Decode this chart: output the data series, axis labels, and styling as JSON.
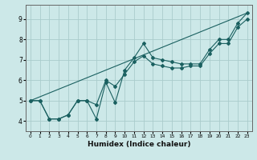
{
  "xlabel": "Humidex (Indice chaleur)",
  "bg_color": "#cce8e8",
  "grid_color": "#aacccc",
  "line_color": "#1a6060",
  "xlim": [
    -0.5,
    23.5
  ],
  "ylim": [
    3.5,
    9.7
  ],
  "xticks": [
    0,
    1,
    2,
    3,
    4,
    5,
    6,
    7,
    8,
    9,
    10,
    11,
    12,
    13,
    14,
    15,
    16,
    17,
    18,
    19,
    20,
    21,
    22,
    23
  ],
  "yticks": [
    4,
    5,
    6,
    7,
    8,
    9
  ],
  "line1_x": [
    0,
    1,
    2,
    3,
    4,
    5,
    6,
    7,
    8,
    9,
    10,
    11,
    12,
    13,
    14,
    15,
    16,
    17,
    18,
    19,
    20,
    21,
    22,
    23
  ],
  "line1_y": [
    5.0,
    5.0,
    4.1,
    4.1,
    4.3,
    5.0,
    5.0,
    4.1,
    5.9,
    4.9,
    6.5,
    7.1,
    7.8,
    7.1,
    7.0,
    6.9,
    6.8,
    6.8,
    6.8,
    7.5,
    8.0,
    8.0,
    8.8,
    9.3
  ],
  "line2_x": [
    0,
    1,
    2,
    3,
    4,
    5,
    6,
    7,
    8,
    9,
    10,
    11,
    12,
    13,
    14,
    15,
    16,
    17,
    18,
    19,
    20,
    21,
    22,
    23
  ],
  "line2_y": [
    5.0,
    5.0,
    4.1,
    4.1,
    4.3,
    5.0,
    5.0,
    4.8,
    6.0,
    5.7,
    6.3,
    6.9,
    7.2,
    6.8,
    6.7,
    6.6,
    6.6,
    6.7,
    6.7,
    7.3,
    7.8,
    7.8,
    8.6,
    9.0
  ],
  "line3_x": [
    0,
    23
  ],
  "line3_y": [
    5.0,
    9.3
  ]
}
